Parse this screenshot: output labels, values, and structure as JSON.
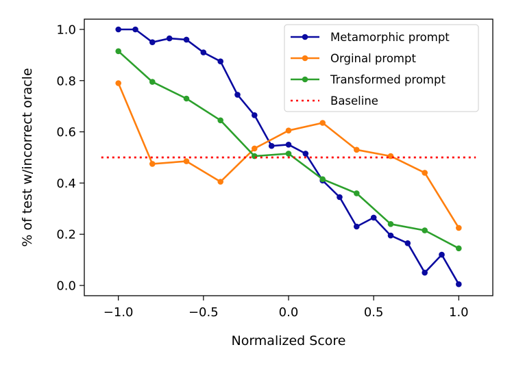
{
  "chart_data": {
    "type": "line",
    "title": "",
    "xlabel": "Normalized Score",
    "ylabel": "% of test w/incorrect oracle",
    "xlim": [
      -1.2,
      1.2
    ],
    "ylim": [
      -0.04,
      1.04
    ],
    "x_ticks": [
      -1.0,
      -0.5,
      0.0,
      0.5,
      1.0
    ],
    "x_tick_labels": [
      "−1.0",
      "−0.5",
      "0.0",
      "0.5",
      "1.0"
    ],
    "y_ticks": [
      0.0,
      0.2,
      0.4,
      0.6,
      0.8,
      1.0
    ],
    "y_tick_labels": [
      "0.0",
      "0.2",
      "0.4",
      "0.6",
      "0.8",
      "1.0"
    ],
    "grid": false,
    "legend_position": "top-right",
    "series": [
      {
        "name": "Metamorphic prompt",
        "color": "#0a0aa0",
        "style": "solid",
        "marker": "circle",
        "x": [
          -1.0,
          -0.9,
          -0.8,
          -0.7,
          -0.6,
          -0.5,
          -0.4,
          -0.3,
          -0.2,
          -0.1,
          0.0,
          0.1,
          0.2,
          0.3,
          0.4,
          0.5,
          0.6,
          0.7,
          0.8,
          0.9,
          1.0
        ],
        "y": [
          1.0,
          1.0,
          0.95,
          0.965,
          0.96,
          0.91,
          0.875,
          0.745,
          0.665,
          0.545,
          0.55,
          0.515,
          0.41,
          0.345,
          0.23,
          0.265,
          0.195,
          0.165,
          0.05,
          0.12,
          0.005
        ]
      },
      {
        "name": "Orginal prompt",
        "color": "#ff7f0e",
        "style": "solid",
        "marker": "circle",
        "x": [
          -1.0,
          -0.8,
          -0.6,
          -0.4,
          -0.2,
          0.0,
          0.2,
          0.4,
          0.6,
          0.8,
          1.0
        ],
        "y": [
          0.79,
          0.475,
          0.485,
          0.405,
          0.535,
          0.605,
          0.635,
          0.53,
          0.505,
          0.44,
          0.225
        ]
      },
      {
        "name": "Transformed prompt",
        "color": "#2ca02c",
        "style": "solid",
        "marker": "circle",
        "x": [
          -1.0,
          -0.8,
          -0.6,
          -0.4,
          -0.2,
          0.0,
          0.2,
          0.4,
          0.6,
          0.8,
          1.0
        ],
        "y": [
          0.915,
          0.795,
          0.73,
          0.645,
          0.505,
          0.515,
          0.415,
          0.36,
          0.24,
          0.215,
          0.145
        ]
      },
      {
        "name": "Baseline",
        "color": "#ff0000",
        "style": "dotted",
        "marker": "none",
        "x": [
          -1.1,
          1.1
        ],
        "y": [
          0.5,
          0.5
        ]
      }
    ]
  }
}
